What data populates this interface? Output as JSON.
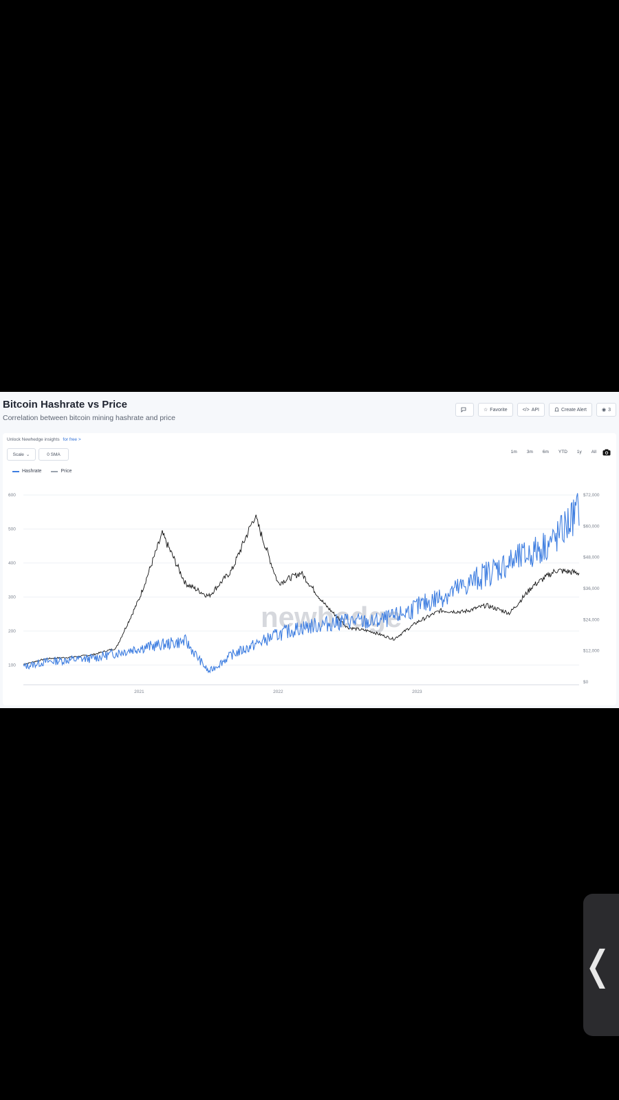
{
  "header": {
    "title": "Bitcoin Hashrate vs Price",
    "subtitle": "Correlation between bitcoin mining hashrate and price"
  },
  "actions": [
    {
      "name": "comment-button",
      "label": "",
      "icon": "comment-icon"
    },
    {
      "name": "favorite-button",
      "label": "Favorite",
      "icon": "star-icon"
    },
    {
      "name": "api-button",
      "label": "API",
      "icon": "code-icon"
    },
    {
      "name": "create-alert-button",
      "label": "Create Alert",
      "icon": "bell-icon"
    },
    {
      "name": "views-button",
      "label": "3",
      "icon": "eye-icon"
    }
  ],
  "unlock": {
    "text": "Unlock Newhedge insights",
    "link": "for free >"
  },
  "controls": {
    "scale_label": "Scale",
    "sma_label": "0 SMA"
  },
  "ranges": [
    "1m",
    "3m",
    "6m",
    "YTD",
    "1y",
    "All"
  ],
  "watermark": "newhedge",
  "colors": {
    "hashrate": "#3d7de0",
    "price": "#111111",
    "grid": "#eef1f5"
  },
  "chart_data": {
    "type": "line",
    "title": "Bitcoin Hashrate vs Price",
    "x_ticks": [
      "2021",
      "2022",
      "2023"
    ],
    "y_left": {
      "ticks": [
        "100",
        "200",
        "300",
        "400",
        "500",
        "600"
      ],
      "range": [
        50,
        600
      ]
    },
    "y_right": {
      "ticks": [
        "$0",
        "$12,000",
        "$24,000",
        "$36,000",
        "$48,000",
        "$60,000",
        "$72,000"
      ],
      "range": [
        0,
        72000
      ]
    },
    "legend_placement": "top-left",
    "grid": true,
    "x": [
      "2020-03",
      "2020-05",
      "2020-07",
      "2020-09",
      "2020-11",
      "2021-01",
      "2021-03",
      "2021-05",
      "2021-07",
      "2021-09",
      "2021-11",
      "2022-01",
      "2022-03",
      "2022-05",
      "2022-07",
      "2022-09",
      "2022-11",
      "2023-01",
      "2023-03",
      "2023-05",
      "2023-07",
      "2023-09",
      "2023-11",
      "2024-01",
      "2024-03"
    ],
    "series": [
      {
        "name": "Hashrate",
        "axis": "left",
        "values": [
          95,
          110,
          115,
          120,
          135,
          150,
          160,
          170,
          80,
          130,
          160,
          190,
          210,
          220,
          230,
          225,
          240,
          270,
          300,
          330,
          370,
          400,
          430,
          470,
          560
        ]
      },
      {
        "name": "Price",
        "axis": "right",
        "values": [
          6800,
          9000,
          9500,
          10500,
          13000,
          32000,
          57000,
          38000,
          33000,
          43000,
          64000,
          38000,
          42000,
          30000,
          21000,
          19500,
          16500,
          23000,
          27500,
          27000,
          29500,
          26500,
          37000,
          43000,
          42000
        ]
      }
    ]
  }
}
